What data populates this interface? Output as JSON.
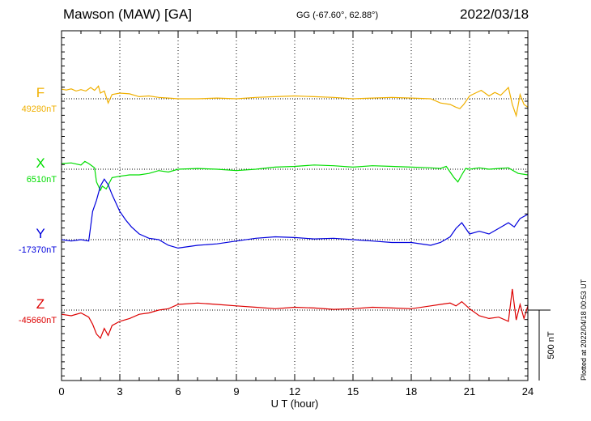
{
  "header": {
    "station": "Mawson (MAW)  [GA]",
    "coords": "GG (-67.60°,  62.88°)",
    "date": "2022/03/18"
  },
  "footer": {
    "plotted": "Plotted at 2022/04/18 00:53 UT"
  },
  "chart_data": {
    "type": "line",
    "xlabel": "U T (hour)",
    "xlim": [
      0,
      24
    ],
    "xticks": [
      "0",
      "3",
      "6",
      "9",
      "12",
      "15",
      "18",
      "21",
      "24"
    ],
    "grid": "vertical dotted every 3 hours",
    "scale_bar": "500 nT",
    "scale_bar_value_nT": 500,
    "colors": {
      "F": "#f0b000",
      "X": "#00dd00",
      "Y": "#0000dd",
      "Z": "#dd0000"
    },
    "series": [
      {
        "name": "F",
        "label": "F",
        "baseline": "49280nT",
        "x": [
          0,
          0.25,
          0.5,
          0.75,
          1.0,
          1.25,
          1.5,
          1.7,
          1.9,
          2.0,
          2.2,
          2.4,
          2.6,
          3,
          3.5,
          4,
          4.5,
          5,
          5.5,
          6,
          7,
          8,
          9,
          10,
          11,
          12,
          13,
          14,
          15,
          16,
          17,
          18,
          19,
          19.5,
          20,
          20.3,
          20.5,
          20.7,
          21,
          21.3,
          21.6,
          22,
          22.3,
          22.6,
          23,
          23.2,
          23.4,
          23.6,
          23.8,
          24
        ],
        "values": [
          68,
          62,
          70,
          55,
          65,
          55,
          80,
          60,
          90,
          40,
          55,
          -30,
          30,
          40,
          35,
          15,
          20,
          10,
          5,
          0,
          0,
          5,
          0,
          10,
          15,
          20,
          15,
          10,
          0,
          5,
          10,
          5,
          0,
          -30,
          -40,
          -60,
          -70,
          -40,
          20,
          40,
          60,
          20,
          45,
          25,
          80,
          -40,
          -120,
          30,
          -40,
          -60
        ]
      },
      {
        "name": "X",
        "label": "X",
        "baseline": "6510nT",
        "x": [
          0,
          0.5,
          1.0,
          1.2,
          1.4,
          1.6,
          1.7,
          1.8,
          2.0,
          2.1,
          2.3,
          2.6,
          3,
          3.5,
          4,
          4.5,
          5,
          5.5,
          6,
          7,
          8,
          9,
          10,
          11,
          12,
          13,
          14,
          15,
          16,
          17,
          18,
          19,
          19.5,
          19.8,
          20.0,
          20.2,
          20.4,
          20.6,
          20.8,
          21,
          21.5,
          22,
          22.5,
          23,
          23.5,
          24
        ],
        "values": [
          40,
          45,
          30,
          55,
          40,
          20,
          10,
          -90,
          -150,
          -120,
          -140,
          -60,
          -50,
          -40,
          -40,
          -30,
          -10,
          -20,
          0,
          5,
          0,
          -10,
          0,
          15,
          20,
          30,
          25,
          15,
          25,
          20,
          15,
          10,
          5,
          20,
          -20,
          -60,
          -90,
          -40,
          5,
          0,
          10,
          0,
          5,
          10,
          -30,
          -40
        ]
      },
      {
        "name": "Y",
        "label": "Y",
        "baseline": "-17370nT",
        "x": [
          0,
          0.5,
          1.0,
          1.4,
          1.6,
          1.8,
          2.0,
          2.2,
          2.4,
          2.6,
          2.8,
          3.0,
          3.3,
          3.6,
          4,
          4.5,
          5,
          5.5,
          6,
          7,
          8,
          9,
          10,
          11,
          12,
          13,
          14,
          15,
          16,
          17,
          18,
          19,
          19.5,
          20,
          20.3,
          20.6,
          21,
          21.5,
          22,
          22.5,
          23,
          23.3,
          23.6,
          24
        ],
        "values": [
          0,
          -10,
          0,
          -10,
          200,
          280,
          380,
          430,
          390,
          320,
          260,
          200,
          140,
          90,
          40,
          10,
          0,
          -40,
          -60,
          -40,
          -30,
          -10,
          10,
          20,
          15,
          5,
          10,
          0,
          -10,
          -20,
          -20,
          -40,
          -20,
          20,
          80,
          120,
          40,
          60,
          40,
          80,
          120,
          90,
          150,
          180
        ]
      },
      {
        "name": "Z",
        "label": "Z",
        "baseline": "-45660nT",
        "x": [
          0,
          0.5,
          1.0,
          1.4,
          1.6,
          1.8,
          2.0,
          2.2,
          2.4,
          2.6,
          3,
          3.5,
          4,
          4.5,
          5,
          5.5,
          6,
          7,
          8,
          9,
          10,
          11,
          12,
          13,
          14,
          15,
          16,
          17,
          18,
          19,
          19.5,
          20,
          20.3,
          20.6,
          21,
          21.5,
          22,
          22.5,
          23,
          23.2,
          23.4,
          23.6,
          23.8,
          24
        ],
        "values": [
          -30,
          -40,
          -20,
          -50,
          -100,
          -170,
          -200,
          -130,
          -180,
          -110,
          -80,
          -60,
          -30,
          -20,
          0,
          10,
          40,
          50,
          40,
          30,
          20,
          10,
          20,
          15,
          5,
          10,
          20,
          15,
          10,
          30,
          40,
          50,
          30,
          60,
          10,
          -40,
          -60,
          -50,
          -80,
          150,
          -70,
          40,
          -60,
          30
        ]
      }
    ]
  }
}
